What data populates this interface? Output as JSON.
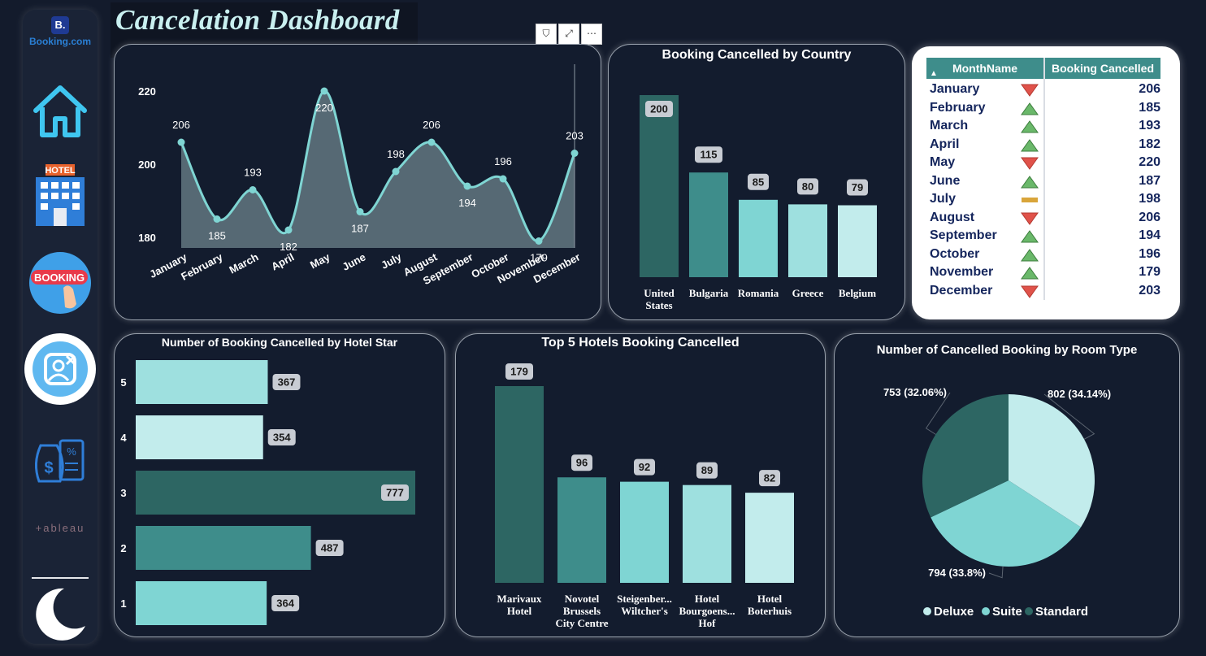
{
  "title": "Cancelation Dashboard",
  "sidebar": {
    "logo_letter": "B.",
    "logo_text": "Booking.com",
    "hotel_text": "HOTEL",
    "booking_text": "BOOKING",
    "tableau_text": "+ableau"
  },
  "visual_tools": {
    "filter": "⛉",
    "focus": "⤢",
    "more": "⋯"
  },
  "colors": {
    "dark_teal": "#2d6663",
    "mid_teal": "#3e8d8b",
    "teal": "#7fd5d3",
    "light_teal": "#9ee0df",
    "pale_teal": "#c2ecec",
    "up": "#6ab86a",
    "down": "#e0524a",
    "flat": "#d9a53a"
  },
  "charts": {
    "monthly": {
      "type": "area",
      "categories": [
        "January",
        "February",
        "March",
        "April",
        "May",
        "June",
        "July",
        "August",
        "September",
        "October",
        "November",
        "December"
      ],
      "values": [
        206,
        185,
        193,
        182,
        220,
        187,
        198,
        206,
        194,
        196,
        179,
        203
      ],
      "y_ticks": [
        220,
        200,
        180
      ],
      "ylim": [
        168,
        226
      ]
    },
    "country": {
      "type": "bar",
      "title": "Booking Cancelled by Country",
      "categories": [
        "United States",
        "Bulgaria",
        "Romania",
        "Greece",
        "Belgium"
      ],
      "values": [
        200,
        115,
        85,
        80,
        79
      ]
    },
    "table": {
      "type": "table",
      "headers": [
        "MonthName",
        "Booking Cancelled"
      ],
      "rows": [
        {
          "month": "January",
          "value": 206,
          "trend": "down"
        },
        {
          "month": "February",
          "value": 185,
          "trend": "up"
        },
        {
          "month": "March",
          "value": 193,
          "trend": "up"
        },
        {
          "month": "April",
          "value": 182,
          "trend": "up"
        },
        {
          "month": "May",
          "value": 220,
          "trend": "down"
        },
        {
          "month": "June",
          "value": 187,
          "trend": "up"
        },
        {
          "month": "July",
          "value": 198,
          "trend": "flat"
        },
        {
          "month": "August",
          "value": 206,
          "trend": "down"
        },
        {
          "month": "September",
          "value": 194,
          "trend": "up"
        },
        {
          "month": "October",
          "value": 196,
          "trend": "up"
        },
        {
          "month": "November",
          "value": 179,
          "trend": "up"
        },
        {
          "month": "December",
          "value": 203,
          "trend": "down"
        }
      ]
    },
    "hotel_star": {
      "type": "bar",
      "title": "Number of Booking Cancelled by Hotel Star",
      "categories": [
        "5",
        "4",
        "3",
        "2",
        "1"
      ],
      "values": [
        367,
        354,
        777,
        487,
        364
      ]
    },
    "top_hotels": {
      "type": "bar",
      "title": "Top 5 Hotels Booking Cancelled",
      "categories": [
        "Marivaux Hotel",
        "Novotel Brussels City Centre",
        "Steigenber... Wiltcher's",
        "Hotel Bourgoens... Hof",
        "Hotel Boterhuis"
      ],
      "values": [
        179,
        96,
        92,
        89,
        82
      ]
    },
    "room_type": {
      "type": "pie",
      "title": "Number of Cancelled Booking by Room Type",
      "slices": [
        {
          "name": "Deluxe",
          "value": 802,
          "label": "802 (34.14%)"
        },
        {
          "name": "Suite",
          "value": 794,
          "label": "794 (33.8%)"
        },
        {
          "name": "Standard",
          "value": 753,
          "label": "753 (32.06%)"
        }
      ]
    }
  }
}
